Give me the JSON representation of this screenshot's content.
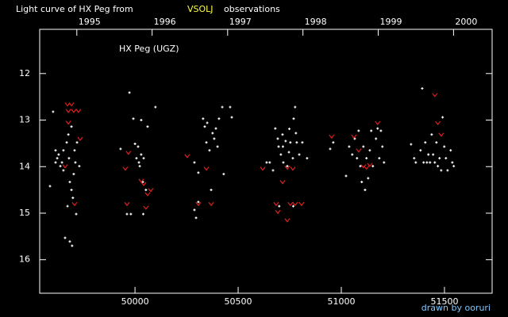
{
  "chart_data": {
    "type": "scatter",
    "title": "Light curve of HX Peg from",
    "title_highlight": "VSOLJ",
    "title_end": "observations",
    "annotation": "HX Peg (UGZ)",
    "xlim": [
      49538,
      51731
    ],
    "ylim": [
      16.72,
      11.05
    ],
    "xticks": [
      50000,
      50500,
      51000,
      51500
    ],
    "yticks": [
      12,
      13,
      14,
      15,
      16
    ],
    "x2ticks": [
      {
        "value": 49718,
        "label": "1995"
      },
      {
        "value": 50083,
        "label": "1996"
      },
      {
        "value": 50449,
        "label": "1997"
      },
      {
        "value": 50814,
        "label": "1998"
      },
      {
        "value": 51179,
        "label": "1999"
      },
      {
        "value": 51544,
        "label": "2000"
      }
    ],
    "series": [
      {
        "color": "#ffffff",
        "marker": "dot",
        "x": [
          49588,
          49603,
          49615,
          49615,
          49623,
          49630,
          49638,
          49646,
          49653,
          49653,
          49661,
          49669,
          49673,
          49677,
          49680,
          49684,
          49684,
          49692,
          49692,
          49695,
          49699,
          49703,
          49707,
          49711,
          49715,
          49719,
          49730,
          49930,
          49973,
          49961,
          49980,
          49992,
          50000,
          50007,
          50015,
          50019,
          50023,
          50030,
          50030,
          50038,
          50040,
          50042,
          50053,
          50061,
          50099,
          50288,
          50288,
          50296,
          50307,
          50307,
          50330,
          50338,
          50346,
          50350,
          50361,
          50369,
          50376,
          50384,
          50392,
          50400,
          50407,
          50423,
          50430,
          50461,
          50469,
          50638,
          50653,
          50669,
          50680,
          50692,
          50696,
          50699,
          50707,
          50715,
          50717,
          50719,
          50730,
          50738,
          50746,
          50748,
          50753,
          50765,
          50767,
          50769,
          50776,
          50780,
          50784,
          50796,
          50811,
          50834,
          50946,
          50961,
          51023,
          51038,
          51053,
          51065,
          51076,
          51084,
          51092,
          51099,
          51107,
          51115,
          51122,
          51130,
          51138,
          51145,
          51153,
          51168,
          51176,
          51184,
          51192,
          51199,
          51207,
          51338,
          51353,
          51361,
          51384,
          51392,
          51399,
          51407,
          51415,
          51422,
          51430,
          51438,
          51445,
          51453,
          51461,
          51468,
          51476,
          51484,
          51491,
          51499,
          51507,
          51515,
          51530,
          51538,
          51545
        ],
        "values": [
          14.42,
          12.82,
          13.65,
          13.91,
          13.82,
          13.74,
          13.99,
          13.91,
          13.65,
          14.08,
          15.53,
          13.48,
          14.85,
          13.31,
          13.82,
          14.33,
          15.61,
          13.14,
          14.5,
          15.7,
          14.67,
          14.16,
          13.65,
          13.91,
          15.02,
          13.48,
          13.99,
          13.62,
          12.41,
          15.02,
          15.02,
          12.97,
          13.51,
          13.82,
          13.57,
          13.91,
          13.99,
          13.0,
          13.74,
          14.33,
          15.02,
          13.82,
          14.5,
          13.14,
          12.72,
          13.91,
          14.93,
          15.1,
          14.13,
          14.76,
          12.97,
          13.14,
          13.48,
          13.06,
          13.65,
          14.5,
          13.28,
          13.4,
          13.18,
          13.57,
          12.97,
          12.72,
          14.16,
          12.72,
          12.94,
          13.91,
          13.91,
          14.08,
          13.18,
          13.4,
          13.57,
          14.85,
          13.74,
          13.31,
          13.57,
          13.91,
          13.45,
          13.99,
          13.69,
          13.19,
          13.48,
          13.82,
          14.85,
          12.97,
          12.72,
          13.28,
          13.48,
          13.74,
          13.48,
          13.82,
          13.62,
          13.48,
          14.2,
          13.57,
          13.74,
          13.4,
          13.82,
          13.23,
          13.99,
          14.33,
          13.57,
          14.5,
          13.82,
          14.25,
          13.65,
          13.23,
          13.99,
          13.4,
          13.18,
          13.82,
          13.23,
          13.57,
          13.91,
          13.52,
          13.82,
          13.91,
          13.65,
          12.32,
          13.91,
          13.48,
          13.91,
          13.74,
          13.91,
          13.31,
          13.74,
          13.91,
          13.48,
          13.99,
          13.82,
          14.08,
          12.94,
          13.57,
          13.82,
          14.08,
          13.65,
          13.91,
          13.99
        ]
      },
      {
        "color": "#e02020",
        "marker": "v",
        "x": [
          49673,
          49677,
          49692,
          49703,
          49726,
          49734,
          49661,
          49677,
          49707,
          49953,
          49961,
          49968,
          50030,
          50042,
          50053,
          50061,
          50076,
          50253,
          50307,
          50346,
          50369,
          50619,
          50684,
          50692,
          50715,
          50738,
          50753,
          50765,
          50776,
          50807,
          50738,
          50953,
          51061,
          51084,
          51107,
          51122,
          51138,
          51176,
          51453,
          51468,
          51484
        ],
        "values": [
          12.66,
          12.8,
          12.66,
          12.8,
          12.8,
          13.4,
          13.99,
          13.05,
          14.8,
          14.04,
          14.8,
          13.7,
          14.3,
          14.37,
          14.88,
          14.59,
          14.5,
          13.77,
          14.8,
          14.04,
          14.8,
          14.04,
          14.8,
          14.97,
          14.33,
          15.15,
          14.8,
          14.04,
          14.8,
          14.8,
          14.02,
          13.35,
          13.35,
          13.65,
          13.99,
          14.02,
          13.96,
          13.06,
          12.46,
          13.06,
          13.31
        ]
      }
    ]
  },
  "credit": "drawn by ooruri"
}
